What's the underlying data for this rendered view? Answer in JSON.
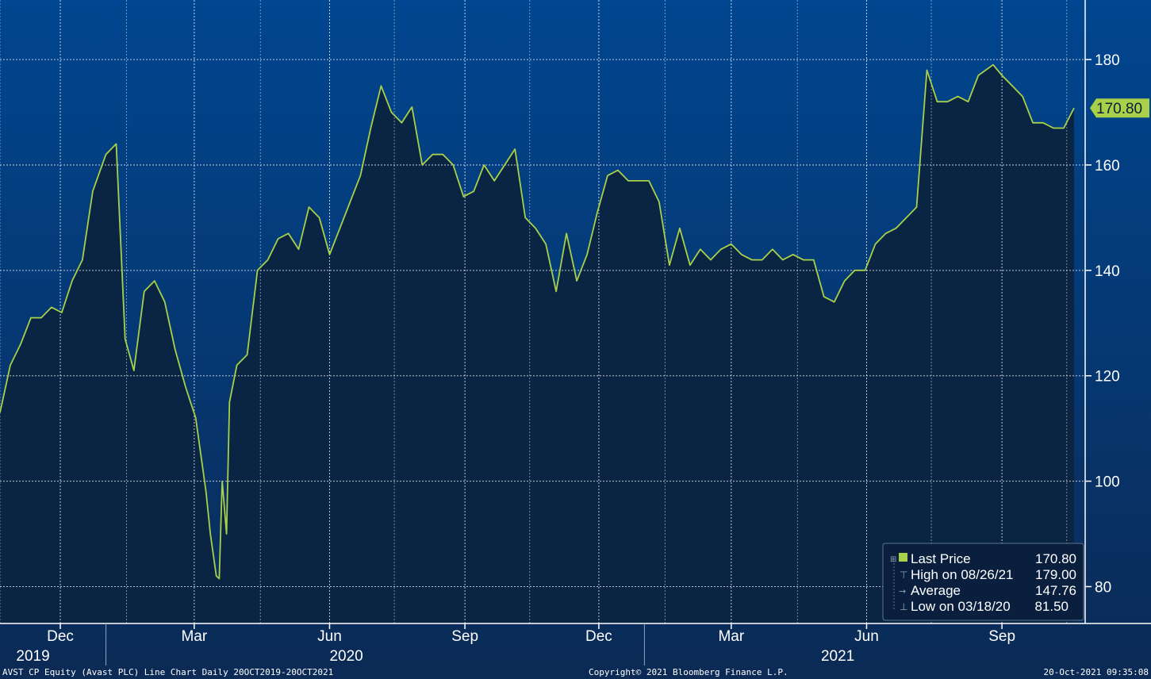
{
  "colors": {
    "background_top": "#004690",
    "background_bottom": "#0b2a55",
    "area_fill": "#0a2444",
    "line": "#a8d048",
    "grid": "#ffffff",
    "legend_bg": "#0a1f3d",
    "last_price_label_bg": "#a8d048",
    "last_price_label_text": "#0a1f3d"
  },
  "footer": {
    "left": "AVST CP Equity (Avast PLC) Line Chart  Daily 20OCT2019-20OCT2021",
    "center": "Copyright© 2021 Bloomberg Finance L.P.",
    "right": "20-Oct-2021 09:35:08"
  },
  "legend": {
    "last_price_label": "Last Price",
    "last_price_value": "170.80",
    "high_label": "High on 08/26/21",
    "high_value": "179.00",
    "average_label": "Average",
    "average_value": "147.76",
    "low_label": "Low on 03/18/20",
    "low_value": "81.50"
  },
  "last_price_tag": "170.80",
  "chart_data": {
    "type": "area",
    "title": "",
    "xlabel": "",
    "ylabel": "",
    "ylim": [
      73,
      191
    ],
    "y_ticks": [
      80,
      100,
      120,
      140,
      160,
      180
    ],
    "grid": true,
    "legend_position": "bottom-right",
    "x_tick_labels": [
      "Dec",
      "Mar",
      "Jun",
      "Sep",
      "Dec",
      "Mar",
      "Jun",
      "Sep"
    ],
    "x_tick_dates": [
      "2019-12-01",
      "2020-03-01",
      "2020-06-01",
      "2020-09-01",
      "2020-12-01",
      "2021-03-01",
      "2021-06-01",
      "2021-09-01"
    ],
    "year_labels": [
      "2019",
      "2020",
      "2021"
    ],
    "year_label_dates": [
      "2019-11-01",
      "2020-06-01",
      "2021-05-01"
    ],
    "year_separator_dates": [
      "2020-01-01",
      "2021-01-01"
    ],
    "series": [
      {
        "x": [
          "2019-10-21",
          "2019-10-28",
          "2019-11-04",
          "2019-11-11",
          "2019-11-18",
          "2019-11-25",
          "2019-12-02",
          "2019-12-09",
          "2019-12-16",
          "2019-12-23",
          "2020-01-01",
          "2020-01-08",
          "2020-01-14",
          "2020-01-20",
          "2020-01-27",
          "2020-02-03",
          "2020-02-10",
          "2020-02-17",
          "2020-02-24",
          "2020-03-02",
          "2020-03-09",
          "2020-03-12",
          "2020-03-16",
          "2020-03-18",
          "2020-03-20",
          "2020-03-23",
          "2020-03-25",
          "2020-03-30",
          "2020-04-06",
          "2020-04-13",
          "2020-04-20",
          "2020-04-27",
          "2020-05-04",
          "2020-05-11",
          "2020-05-18",
          "2020-05-25",
          "2020-06-01",
          "2020-06-08",
          "2020-06-15",
          "2020-06-22",
          "2020-06-29",
          "2020-07-06",
          "2020-07-13",
          "2020-07-20",
          "2020-07-27",
          "2020-08-03",
          "2020-08-10",
          "2020-08-17",
          "2020-08-24",
          "2020-08-31",
          "2020-09-07",
          "2020-09-14",
          "2020-09-21",
          "2020-09-28",
          "2020-10-05",
          "2020-10-12",
          "2020-10-19",
          "2020-10-26",
          "2020-11-02",
          "2020-11-09",
          "2020-11-16",
          "2020-11-23",
          "2020-11-30",
          "2020-12-07",
          "2020-12-14",
          "2020-12-21",
          "2021-01-04",
          "2021-01-11",
          "2021-01-18",
          "2021-01-25",
          "2021-02-01",
          "2021-02-08",
          "2021-02-15",
          "2021-02-22",
          "2021-03-01",
          "2021-03-08",
          "2021-03-15",
          "2021-03-22",
          "2021-03-29",
          "2021-04-05",
          "2021-04-12",
          "2021-04-19",
          "2021-04-26",
          "2021-05-03",
          "2021-05-10",
          "2021-05-17",
          "2021-05-24",
          "2021-05-31",
          "2021-06-07",
          "2021-06-14",
          "2021-06-21",
          "2021-06-28",
          "2021-07-05",
          "2021-07-12",
          "2021-07-19",
          "2021-07-26",
          "2021-08-02",
          "2021-08-09",
          "2021-08-16",
          "2021-08-26",
          "2021-09-01",
          "2021-09-08",
          "2021-09-15",
          "2021-09-22",
          "2021-09-29",
          "2021-10-06",
          "2021-10-13",
          "2021-10-20"
        ],
        "values": [
          113,
          122,
          126,
          131,
          131,
          133,
          132,
          138,
          142,
          155,
          162,
          164,
          127,
          121,
          136,
          138,
          134,
          125,
          118,
          112,
          98,
          90,
          82,
          81.5,
          100,
          90,
          115,
          122,
          124,
          140,
          142,
          146,
          147,
          144,
          152,
          150,
          143,
          148,
          153,
          158,
          167,
          175,
          170,
          168,
          171,
          160,
          162,
          162,
          160,
          154,
          155,
          160,
          157,
          160,
          163,
          150,
          148,
          145,
          136,
          147,
          138,
          143,
          151,
          158,
          159,
          157,
          157,
          153,
          141,
          148,
          141,
          144,
          142,
          144,
          145,
          143,
          142,
          142,
          144,
          142,
          143,
          142,
          142,
          135,
          134,
          138,
          140,
          140,
          145,
          147,
          148,
          150,
          152,
          178,
          172,
          172,
          173,
          172,
          177,
          179,
          177,
          175,
          173,
          168,
          168,
          167,
          167,
          170.8
        ]
      }
    ]
  }
}
